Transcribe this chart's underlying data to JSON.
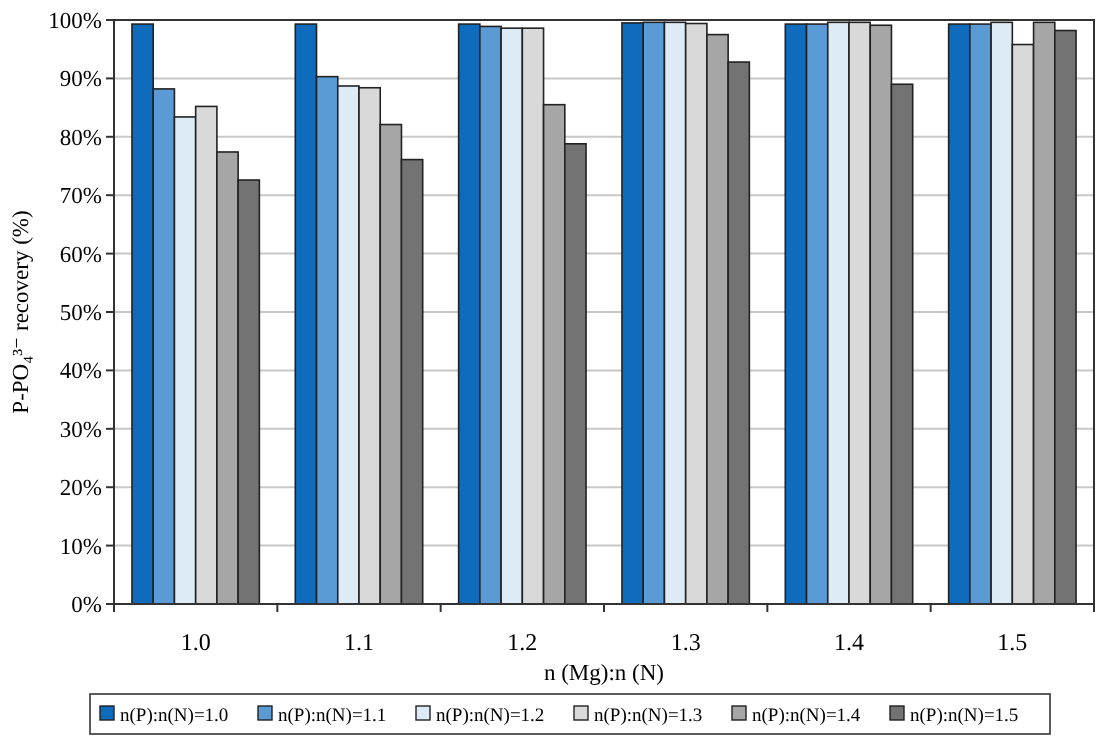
{
  "chart_data": {
    "type": "bar",
    "xlabel": "n (Mg):n (N)",
    "ylabel": "P-PO₄³⁻ recovery (%)",
    "categories": [
      "1.0",
      "1.1",
      "1.2",
      "1.3",
      "1.4",
      "1.5"
    ],
    "series": [
      {
        "name": "n(P):n(N)=1.0",
        "color": "#0f6cbd",
        "values": [
          99.3,
          99.3,
          99.3,
          99.5,
          99.3,
          99.3
        ]
      },
      {
        "name": "n(P):n(N)=1.1",
        "color": "#5b9bd5",
        "values": [
          88.2,
          90.3,
          98.9,
          99.6,
          99.3,
          99.3
        ]
      },
      {
        "name": "n(P):n(N)=1.2",
        "color": "#ddebf7",
        "values": [
          83.4,
          88.7,
          98.6,
          99.6,
          99.6,
          99.6
        ]
      },
      {
        "name": "n(P):n(N)=1.3",
        "color": "#d9d9d9",
        "values": [
          85.2,
          88.4,
          98.6,
          99.4,
          99.6,
          95.8
        ]
      },
      {
        "name": "n(P):n(N)=1.4",
        "color": "#a6a6a6",
        "values": [
          77.4,
          82.1,
          85.5,
          97.5,
          99.1,
          99.6
        ]
      },
      {
        "name": "n(P):n(N)=1.5",
        "color": "#737373",
        "values": [
          72.6,
          76.1,
          78.8,
          92.8,
          89.0,
          98.2
        ]
      }
    ],
    "ylim": [
      0,
      100
    ],
    "yticks": [
      {
        "value": 0,
        "label": "0%"
      },
      {
        "value": 10,
        "label": "10%"
      },
      {
        "value": 20,
        "label": "20%"
      },
      {
        "value": 30,
        "label": "30%"
      },
      {
        "value": 40,
        "label": "40%"
      },
      {
        "value": 50,
        "label": "50%"
      },
      {
        "value": 60,
        "label": "60%"
      },
      {
        "value": 70,
        "label": "70%"
      },
      {
        "value": 80,
        "label": "80%"
      },
      {
        "value": 90,
        "label": "90%"
      },
      {
        "value": 100,
        "label": "100%"
      }
    ],
    "grid": "y",
    "legend": "bottom"
  }
}
